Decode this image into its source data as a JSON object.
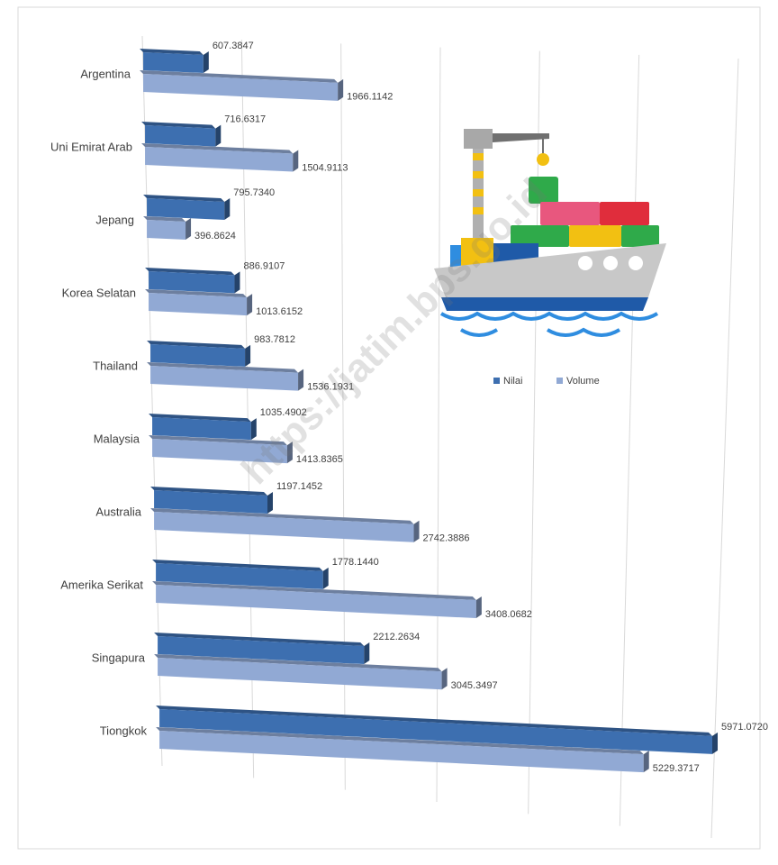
{
  "chart_data": {
    "type": "bar3d",
    "categories": [
      "Argentina",
      "Uni Emirat Arab",
      "Jepang",
      "Korea Selatan",
      "Thailand",
      "Malaysia",
      "Australia",
      "Amerika Serikat",
      "Singapura",
      "Tiongkok"
    ],
    "series": [
      {
        "name": "Nilai",
        "color": "#3d6fb0",
        "values": [
          607.3847,
          716.6317,
          795.734,
          886.9107,
          983.7812,
          1035.4902,
          1197.1452,
          1778.144,
          2212.2634,
          5971.072
        ],
        "value_labels": [
          "607.3847",
          "716.6317",
          "795.7340",
          "886.9107",
          "983.7812",
          "1035.4902",
          "1197.1452",
          "1778.1440",
          "2212.2634",
          "5971.0720"
        ]
      },
      {
        "name": "Volume",
        "color": "#91a9d4",
        "values": [
          1966.1142,
          1504.9113,
          396.8624,
          1013.6152,
          1536.1931,
          1413.8365,
          2742.3886,
          3408.0682,
          3045.3497,
          5229.3717
        ],
        "value_labels": [
          "1966.1142",
          "1504.9113",
          "396.8624",
          "1013.6152",
          "1536.1931",
          "1413.8365",
          "2742.3886",
          "3408.0682",
          "3045.3497",
          "5229.3717"
        ]
      }
    ],
    "xlim": [
      0,
      6000
    ],
    "xticks": [
      0,
      1000,
      2000,
      3000,
      4000,
      5000,
      6000
    ],
    "grid": true,
    "legend": "right",
    "watermark": "https://jatim.bps.go.id"
  }
}
